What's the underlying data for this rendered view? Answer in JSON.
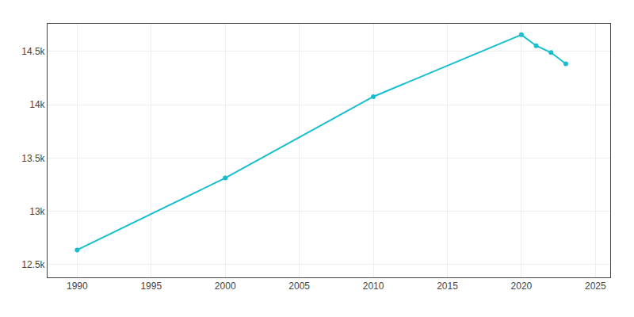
{
  "chart_data": {
    "type": "line",
    "x": [
      1990,
      2000,
      2010,
      2020,
      2021,
      2022,
      2023
    ],
    "values": [
      12637,
      13313,
      14076,
      14657,
      14554,
      14490,
      14384
    ],
    "color": "#17becf",
    "marker": "circle",
    "xlim": [
      1988,
      2026
    ],
    "xticks": [
      1990,
      1995,
      2000,
      2005,
      2010,
      2015,
      2020,
      2025
    ],
    "ylim": [
      12380,
      14760
    ],
    "yticks": [
      {
        "value": 12500,
        "label": "12.5k"
      },
      {
        "value": 13000,
        "label": "13k"
      },
      {
        "value": 13500,
        "label": "13.5k"
      },
      {
        "value": 14000,
        "label": "14k"
      },
      {
        "value": 14500,
        "label": "14.5k"
      }
    ],
    "grid": true
  }
}
